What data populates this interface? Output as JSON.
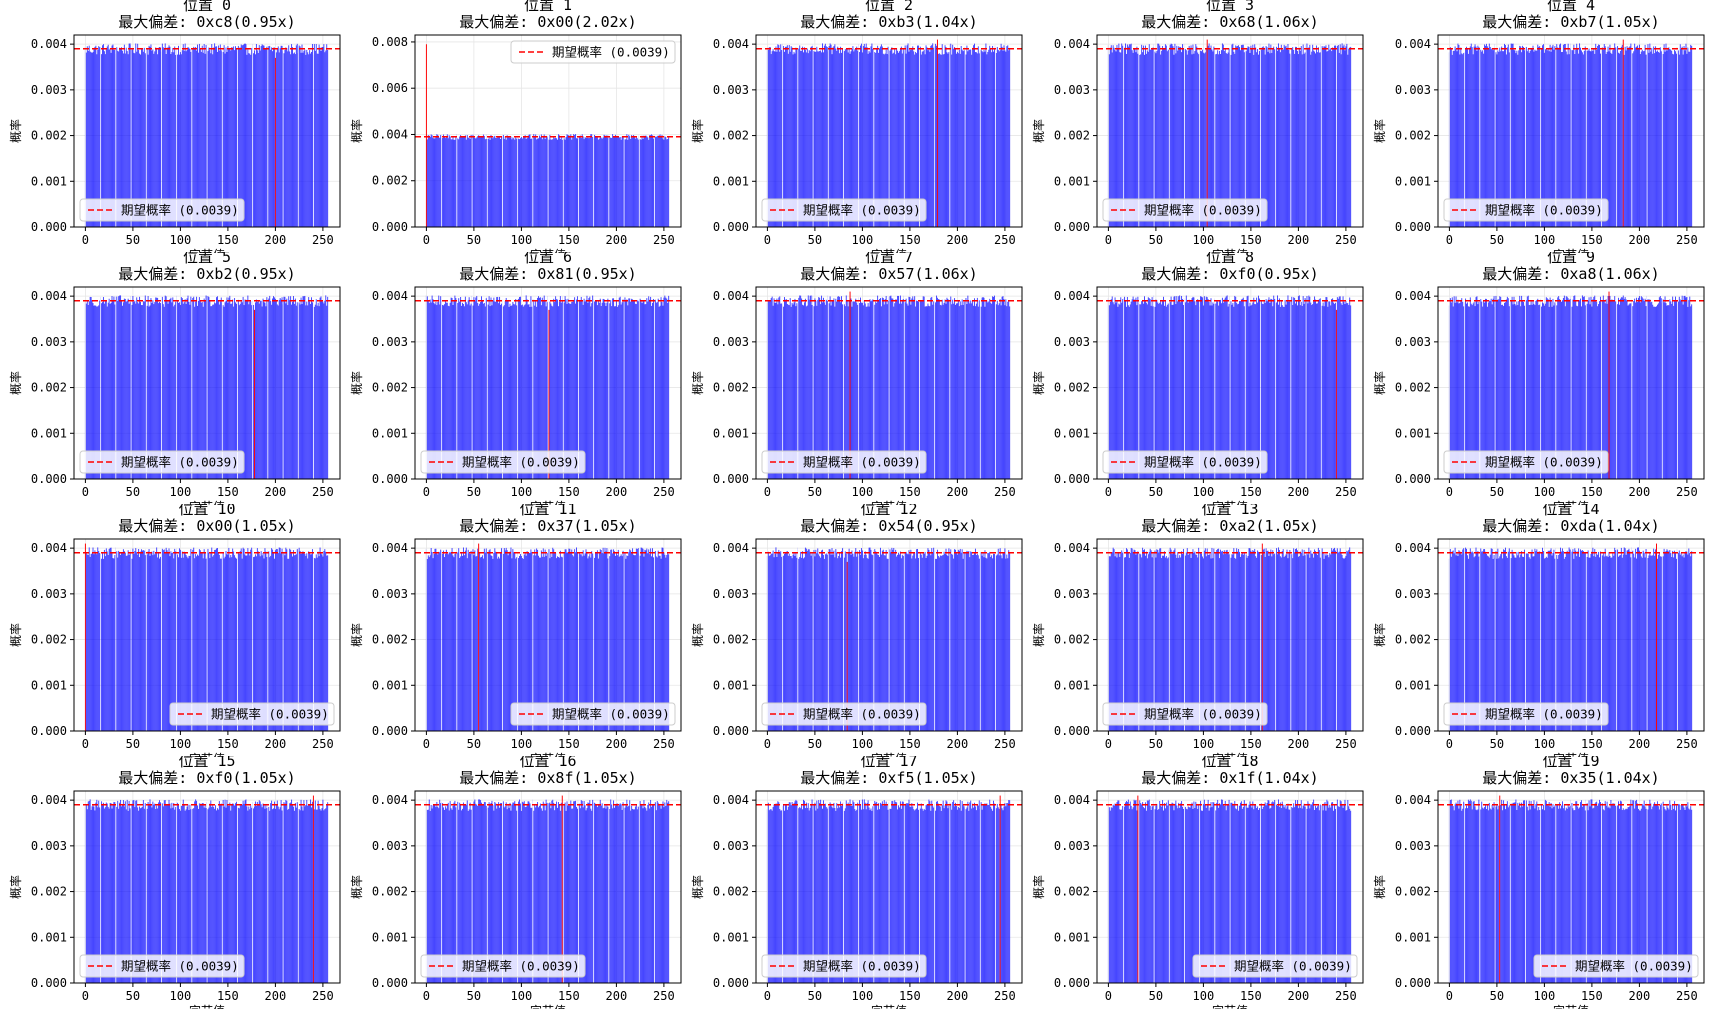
{
  "chart_data": {
    "type": "bar",
    "layout": "4x5 grid of histograms",
    "xlabel": "字节值",
    "ylabel": "概率",
    "expected_probability": 0.0039,
    "legend_label": "期望概率 (0.0039)",
    "bar_color": "#0000ff",
    "expected_line_color": "#ff0000",
    "x_range": [
      0,
      255
    ],
    "x_ticks": [
      0,
      50,
      100,
      150,
      200,
      250
    ],
    "charts": [
      {
        "title_position": "位置 0",
        "title_deviation": "最大偏差: 0xc8(0.95x)",
        "max_dev_byte": 200,
        "max_dev_value": 0.0037,
        "ylim": [
          0,
          0.0042
        ],
        "yticks": [
          "0.000",
          "0.001",
          "0.002",
          "0.003",
          "0.004"
        ],
        "legend_loc": "lower left"
      },
      {
        "title_position": "位置 1",
        "title_deviation": "最大偏差: 0x00(2.02x)",
        "max_dev_byte": 0,
        "max_dev_value": 0.0079,
        "ylim": [
          0,
          0.0083
        ],
        "yticks": [
          "0.000",
          "0.002",
          "0.004",
          "0.006",
          "0.008"
        ],
        "legend_loc": "upper right"
      },
      {
        "title_position": "位置 2",
        "title_deviation": "最大偏差: 0xb3(1.04x)",
        "max_dev_byte": 179,
        "max_dev_value": 0.0041,
        "ylim": [
          0,
          0.0042
        ],
        "yticks": [
          "0.000",
          "0.001",
          "0.002",
          "0.003",
          "0.004"
        ],
        "legend_loc": "lower left"
      },
      {
        "title_position": "位置 3",
        "title_deviation": "最大偏差: 0x68(1.06x)",
        "max_dev_byte": 104,
        "max_dev_value": 0.0041,
        "ylim": [
          0,
          0.0042
        ],
        "yticks": [
          "0.000",
          "0.001",
          "0.002",
          "0.003",
          "0.004"
        ],
        "legend_loc": "lower left"
      },
      {
        "title_position": "位置 4",
        "title_deviation": "最大偏差: 0xb7(1.05x)",
        "max_dev_byte": 183,
        "max_dev_value": 0.0041,
        "ylim": [
          0,
          0.0042
        ],
        "yticks": [
          "0.000",
          "0.001",
          "0.002",
          "0.003",
          "0.004"
        ],
        "legend_loc": "lower left"
      },
      {
        "title_position": "位置 5",
        "title_deviation": "最大偏差: 0xb2(0.95x)",
        "max_dev_byte": 178,
        "max_dev_value": 0.0037,
        "ylim": [
          0,
          0.0042
        ],
        "yticks": [
          "0.000",
          "0.001",
          "0.002",
          "0.003",
          "0.004"
        ],
        "legend_loc": "lower left"
      },
      {
        "title_position": "位置 6",
        "title_deviation": "最大偏差: 0x81(0.95x)",
        "max_dev_byte": 129,
        "max_dev_value": 0.0037,
        "ylim": [
          0,
          0.0042
        ],
        "yticks": [
          "0.000",
          "0.001",
          "0.002",
          "0.003",
          "0.004"
        ],
        "legend_loc": "lower left"
      },
      {
        "title_position": "位置 7",
        "title_deviation": "最大偏差: 0x57(1.06x)",
        "max_dev_byte": 87,
        "max_dev_value": 0.0041,
        "ylim": [
          0,
          0.0042
        ],
        "yticks": [
          "0.000",
          "0.001",
          "0.002",
          "0.003",
          "0.004"
        ],
        "legend_loc": "lower left"
      },
      {
        "title_position": "位置 8",
        "title_deviation": "最大偏差: 0xf0(0.95x)",
        "max_dev_byte": 240,
        "max_dev_value": 0.0037,
        "ylim": [
          0,
          0.0042
        ],
        "yticks": [
          "0.000",
          "0.001",
          "0.002",
          "0.003",
          "0.004"
        ],
        "legend_loc": "lower left"
      },
      {
        "title_position": "位置 9",
        "title_deviation": "最大偏差: 0xa8(1.06x)",
        "max_dev_byte": 168,
        "max_dev_value": 0.0041,
        "ylim": [
          0,
          0.0042
        ],
        "yticks": [
          "0.000",
          "0.001",
          "0.002",
          "0.003",
          "0.004"
        ],
        "legend_loc": "lower left"
      },
      {
        "title_position": "位置 10",
        "title_deviation": "最大偏差: 0x00(1.05x)",
        "max_dev_byte": 0,
        "max_dev_value": 0.0041,
        "ylim": [
          0,
          0.0042
        ],
        "yticks": [
          "0.000",
          "0.001",
          "0.002",
          "0.003",
          "0.004"
        ],
        "legend_loc": "lower right"
      },
      {
        "title_position": "位置 11",
        "title_deviation": "最大偏差: 0x37(1.05x)",
        "max_dev_byte": 55,
        "max_dev_value": 0.0041,
        "ylim": [
          0,
          0.0042
        ],
        "yticks": [
          "0.000",
          "0.001",
          "0.002",
          "0.003",
          "0.004"
        ],
        "legend_loc": "lower right"
      },
      {
        "title_position": "位置 12",
        "title_deviation": "最大偏差: 0x54(0.95x)",
        "max_dev_byte": 84,
        "max_dev_value": 0.0037,
        "ylim": [
          0,
          0.0042
        ],
        "yticks": [
          "0.000",
          "0.001",
          "0.002",
          "0.003",
          "0.004"
        ],
        "legend_loc": "lower left"
      },
      {
        "title_position": "位置 13",
        "title_deviation": "最大偏差: 0xa2(1.05x)",
        "max_dev_byte": 162,
        "max_dev_value": 0.0041,
        "ylim": [
          0,
          0.0042
        ],
        "yticks": [
          "0.000",
          "0.001",
          "0.002",
          "0.003",
          "0.004"
        ],
        "legend_loc": "lower left"
      },
      {
        "title_position": "位置 14",
        "title_deviation": "最大偏差: 0xda(1.04x)",
        "max_dev_byte": 218,
        "max_dev_value": 0.0041,
        "ylim": [
          0,
          0.0042
        ],
        "yticks": [
          "0.000",
          "0.001",
          "0.002",
          "0.003",
          "0.004"
        ],
        "legend_loc": "lower left"
      },
      {
        "title_position": "位置 15",
        "title_deviation": "最大偏差: 0xf0(1.05x)",
        "max_dev_byte": 240,
        "max_dev_value": 0.0041,
        "ylim": [
          0,
          0.0042
        ],
        "yticks": [
          "0.000",
          "0.001",
          "0.002",
          "0.003",
          "0.004"
        ],
        "legend_loc": "lower left"
      },
      {
        "title_position": "位置 16",
        "title_deviation": "最大偏差: 0x8f(1.05x)",
        "max_dev_byte": 143,
        "max_dev_value": 0.0041,
        "ylim": [
          0,
          0.0042
        ],
        "yticks": [
          "0.000",
          "0.001",
          "0.002",
          "0.003",
          "0.004"
        ],
        "legend_loc": "lower left"
      },
      {
        "title_position": "位置 17",
        "title_deviation": "最大偏差: 0xf5(1.05x)",
        "max_dev_byte": 245,
        "max_dev_value": 0.0041,
        "ylim": [
          0,
          0.0042
        ],
        "yticks": [
          "0.000",
          "0.001",
          "0.002",
          "0.003",
          "0.004"
        ],
        "legend_loc": "lower left"
      },
      {
        "title_position": "位置 18",
        "title_deviation": "最大偏差: 0x1f(1.04x)",
        "max_dev_byte": 31,
        "max_dev_value": 0.0041,
        "ylim": [
          0,
          0.0042
        ],
        "yticks": [
          "0.000",
          "0.001",
          "0.002",
          "0.003",
          "0.004"
        ],
        "legend_loc": "lower right"
      },
      {
        "title_position": "位置 19",
        "title_deviation": "最大偏差: 0x35(1.04x)",
        "max_dev_byte": 53,
        "max_dev_value": 0.0041,
        "ylim": [
          0,
          0.0042
        ],
        "yticks": [
          "0.000",
          "0.001",
          "0.002",
          "0.003",
          "0.004"
        ],
        "legend_loc": "lower right"
      }
    ]
  }
}
